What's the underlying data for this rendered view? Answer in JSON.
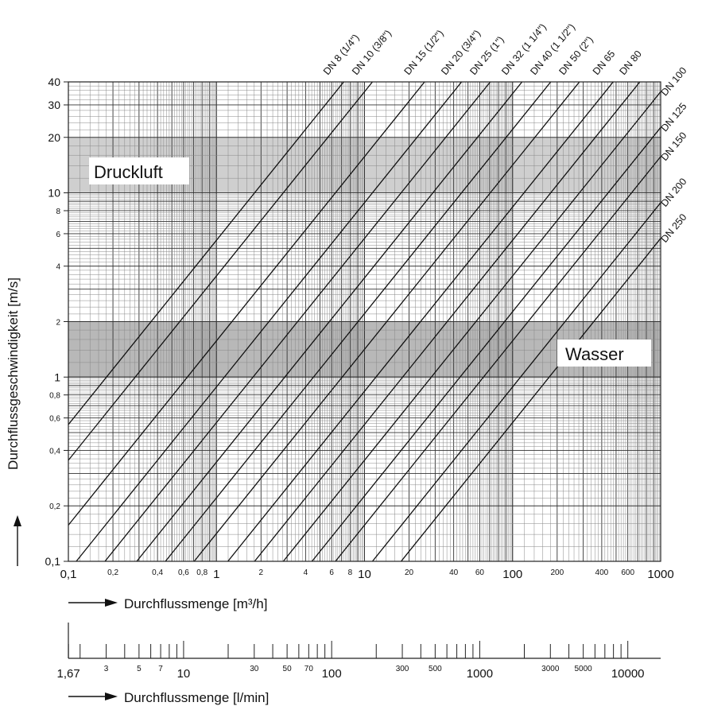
{
  "chart_data": {
    "type": "line",
    "title": "",
    "xlabel": "Durchflussmenge [m³/h]",
    "ylabel": "Durchflussgeschwindigkeit [m/s]",
    "x_scale": "log",
    "y_scale": "log",
    "xlim": [
      0.1,
      1000
    ],
    "ylim": [
      0.1,
      40
    ],
    "grid": true,
    "x_ticks": [
      {
        "v": 0.1,
        "label": "0,1",
        "size": "big"
      },
      {
        "v": 0.2,
        "label": "0,2",
        "size": "small"
      },
      {
        "v": 0.4,
        "label": "0,4",
        "size": "small"
      },
      {
        "v": 0.6,
        "label": "0,6",
        "size": "small"
      },
      {
        "v": 0.8,
        "label": "0,8",
        "size": "small"
      },
      {
        "v": 1,
        "label": "1",
        "size": "big"
      },
      {
        "v": 2,
        "label": "2",
        "size": "small"
      },
      {
        "v": 4,
        "label": "4",
        "size": "small"
      },
      {
        "v": 6,
        "label": "6",
        "size": "small"
      },
      {
        "v": 8,
        "label": "8",
        "size": "small"
      },
      {
        "v": 10,
        "label": "10",
        "size": "big"
      },
      {
        "v": 20,
        "label": "20",
        "size": "small"
      },
      {
        "v": 40,
        "label": "40",
        "size": "small"
      },
      {
        "v": 60,
        "label": "60",
        "size": "small"
      },
      {
        "v": 100,
        "label": "100",
        "size": "big"
      },
      {
        "v": 200,
        "label": "200",
        "size": "small"
      },
      {
        "v": 400,
        "label": "400",
        "size": "small"
      },
      {
        "v": 600,
        "label": "600",
        "size": "small"
      },
      {
        "v": 1000,
        "label": "1000",
        "size": "big"
      }
    ],
    "y_ticks": [
      {
        "v": 0.1,
        "label": "0,1"
      },
      {
        "v": 0.2,
        "label": "0,2"
      },
      {
        "v": 0.4,
        "label": "0,4"
      },
      {
        "v": 0.6,
        "label": "0,6"
      },
      {
        "v": 0.8,
        "label": "0,8"
      },
      {
        "v": 1,
        "label": "1"
      },
      {
        "v": 2,
        "label": "2"
      },
      {
        "v": 4,
        "label": "4"
      },
      {
        "v": 6,
        "label": "6"
      },
      {
        "v": 8,
        "label": "8"
      },
      {
        "v": 10,
        "label": "10"
      },
      {
        "v": 20,
        "label": "20"
      },
      {
        "v": 30,
        "label": "30"
      },
      {
        "v": 40,
        "label": "40"
      }
    ],
    "bands": [
      {
        "name": "Druckluft",
        "v_min": 10,
        "v_max": 20,
        "color": "#cfcfcf"
      },
      {
        "name": "Wasser",
        "v_min": 1,
        "v_max": 2,
        "color": "#b8b8b8"
      }
    ],
    "series": [
      {
        "name": "DN 8 (1/4\")",
        "diameter_mm": 8
      },
      {
        "name": "DN 10 (3/8\")",
        "diameter_mm": 10
      },
      {
        "name": "DN 15 (1/2\")",
        "diameter_mm": 15
      },
      {
        "name": "DN 20 (3/4\")",
        "diameter_mm": 20
      },
      {
        "name": "DN 25 (1\")",
        "diameter_mm": 25
      },
      {
        "name": "DN 32 (1 1/4\")",
        "diameter_mm": 32
      },
      {
        "name": "DN 40 (1 1/2\")",
        "diameter_mm": 40
      },
      {
        "name": "DN 50 (2\")",
        "diameter_mm": 50
      },
      {
        "name": "DN 65",
        "diameter_mm": 65
      },
      {
        "name": "DN 80",
        "diameter_mm": 80
      },
      {
        "name": "DN 100",
        "diameter_mm": 100
      },
      {
        "name": "DN 125",
        "diameter_mm": 125
      },
      {
        "name": "DN 150",
        "diameter_mm": 150
      },
      {
        "name": "DN 200",
        "diameter_mm": 200
      },
      {
        "name": "DN 250",
        "diameter_mm": 250
      }
    ],
    "secondary_axis": {
      "xlabel": "Durchflussmenge [l/min]",
      "xlim": [
        1.67,
        16667
      ],
      "ticks": [
        {
          "v": 1.67,
          "label": "1,67",
          "size": "big"
        },
        {
          "v": 3,
          "label": "3",
          "size": "small"
        },
        {
          "v": 5,
          "label": "5",
          "size": "small"
        },
        {
          "v": 7,
          "label": "7",
          "size": "small"
        },
        {
          "v": 10,
          "label": "10",
          "size": "big"
        },
        {
          "v": 30,
          "label": "30",
          "size": "small"
        },
        {
          "v": 50,
          "label": "50",
          "size": "small"
        },
        {
          "v": 70,
          "label": "70",
          "size": "small"
        },
        {
          "v": 100,
          "label": "100",
          "size": "big"
        },
        {
          "v": 300,
          "label": "300",
          "size": "small"
        },
        {
          "v": 500,
          "label": "500",
          "size": "small"
        },
        {
          "v": 1000,
          "label": "1000",
          "size": "big"
        },
        {
          "v": 3000,
          "label": "3000",
          "size": "small"
        },
        {
          "v": 5000,
          "label": "5000",
          "size": "small"
        },
        {
          "v": 10000,
          "label": "10000",
          "size": "big"
        }
      ]
    }
  }
}
